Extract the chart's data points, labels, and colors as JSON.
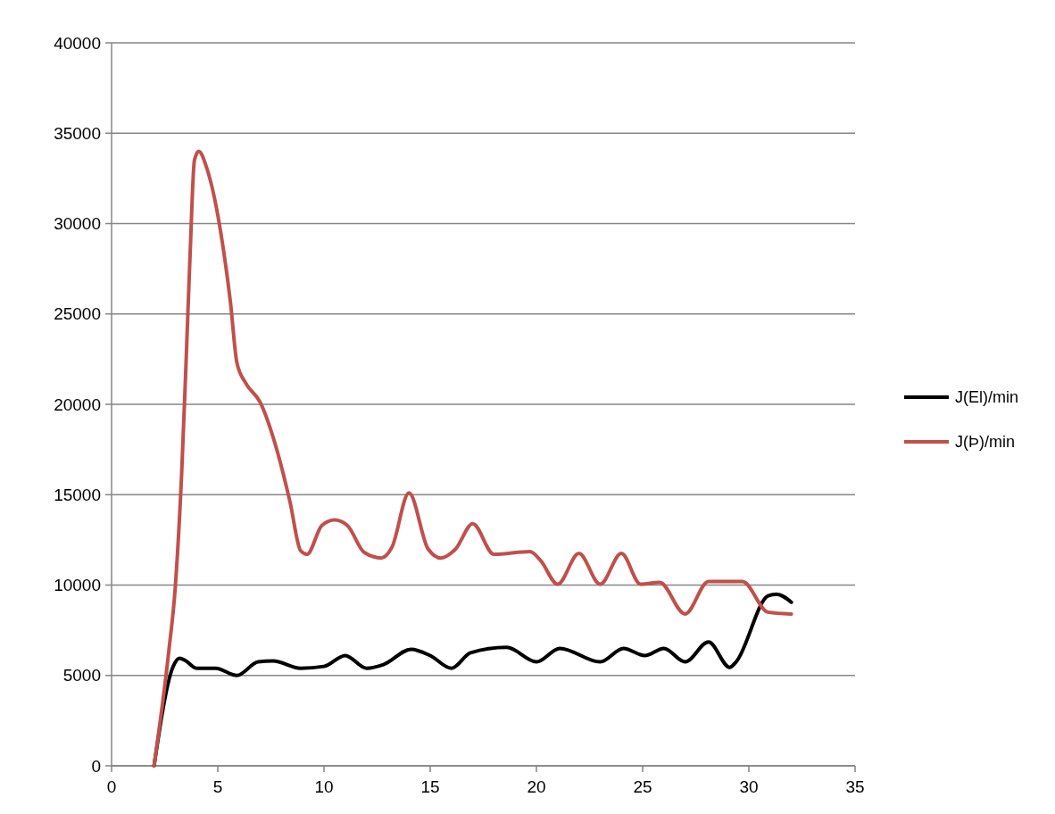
{
  "chart_data": {
    "type": "line",
    "xlim": [
      0,
      35
    ],
    "xticks": [
      0,
      5,
      10,
      15,
      20,
      25,
      30,
      35
    ],
    "ylim": [
      0,
      40000
    ],
    "yticks": [
      0,
      5000,
      10000,
      15000,
      20000,
      25000,
      30000,
      35000,
      40000
    ],
    "grid": "y",
    "legend": "right",
    "marker": "none",
    "line_style": "solid",
    "series": [
      {
        "name": "J(El)/min",
        "color": "#000000",
        "x": [
          2.0,
          2.9,
          3.2,
          3.5,
          4.0,
          4.9,
          5.9,
          6.9,
          7.6,
          8.9,
          10.0,
          11.0,
          12.0,
          12.8,
          14.1,
          15.0,
          16.0,
          16.9,
          18.6,
          20.0,
          21.1,
          23.0,
          24.1,
          25.1,
          26.0,
          27.0,
          28.1,
          29.1,
          29.4,
          30.9,
          31.3,
          32.0
        ],
        "values": [
          0,
          5500,
          5950,
          5800,
          5400,
          5400,
          5000,
          5750,
          5800,
          5400,
          5500,
          6100,
          5400,
          5600,
          6450,
          6100,
          5400,
          6250,
          6550,
          5750,
          6500,
          5750,
          6500,
          6100,
          6500,
          5750,
          6850,
          5450,
          5750,
          9400,
          9500,
          9050
        ]
      },
      {
        "name": "J(Þ)/min",
        "color": "#c0504d",
        "x": [
          2.0,
          2.7,
          3.0,
          3.3,
          3.5,
          3.7,
          3.9,
          4.1,
          4.5,
          5.1,
          5.6,
          5.9,
          6.3,
          7.0,
          7.8,
          8.4,
          8.9,
          9.2,
          9.9,
          10.5,
          11.1,
          11.9,
          12.7,
          13.2,
          14.0,
          14.9,
          15.5,
          16.2,
          17.0,
          18.0,
          19.7,
          20.2,
          21.0,
          22.0,
          23.0,
          24.0,
          24.9,
          25.8,
          27.0,
          28.1,
          29.7,
          30.9,
          32.0
        ],
        "values": [
          0,
          6400,
          9900,
          16200,
          22100,
          28400,
          33500,
          34000,
          33000,
          29800,
          25600,
          22300,
          21200,
          20100,
          17400,
          14600,
          11900,
          11700,
          13300,
          13600,
          13300,
          11800,
          11500,
          12100,
          15100,
          12000,
          11500,
          12000,
          13400,
          11700,
          11850,
          11350,
          10050,
          11750,
          10050,
          11750,
          10050,
          10150,
          8400,
          10200,
          10200,
          8500,
          8400
        ]
      }
    ]
  }
}
